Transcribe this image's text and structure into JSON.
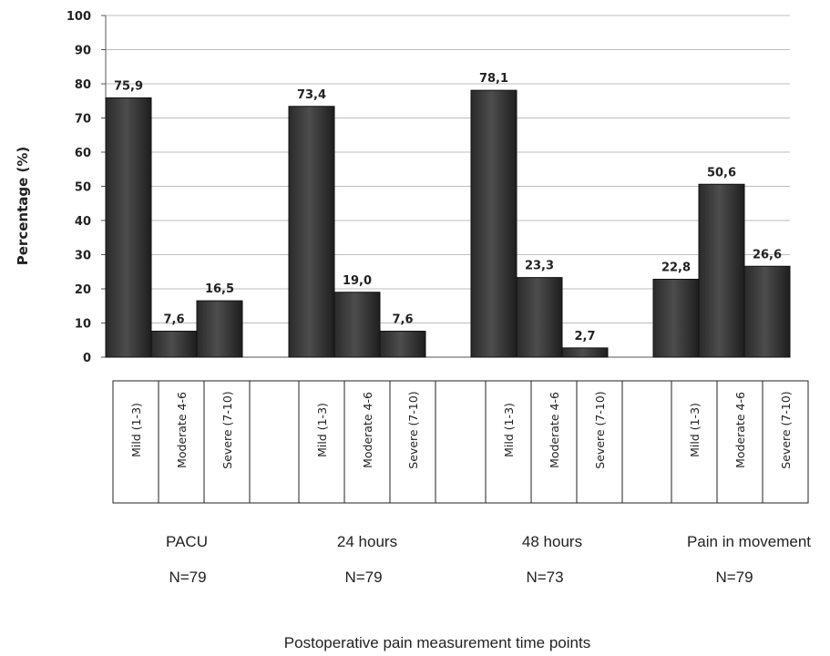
{
  "chart_data": {
    "type": "bar",
    "ylabel": "Percentage (%)",
    "xlabel": "Postoperative pain measurement time points",
    "ylim": [
      0,
      100
    ],
    "yticks": [
      "0",
      "10",
      "20",
      "30",
      "40",
      "50",
      "60",
      "70",
      "80",
      "90",
      "100"
    ],
    "grid": true,
    "bar_color": "#3a3a3a",
    "categories": [
      "Mild (1-3)",
      "Moderate 4-6",
      "Severe (7-10)"
    ],
    "groups": [
      {
        "name": "PACU",
        "n": "N=79",
        "values": [
          75.9,
          7.6,
          16.5
        ],
        "labels": [
          "75,9",
          "7,6",
          "16,5"
        ]
      },
      {
        "name": "24 hours",
        "n": "N=79",
        "values": [
          73.4,
          19.0,
          7.6
        ],
        "labels": [
          "73,4",
          "19,0",
          "7,6"
        ]
      },
      {
        "name": "48 hours",
        "n": "N=73",
        "values": [
          78.1,
          23.3,
          2.7
        ],
        "labels": [
          "78,1",
          "23,3",
          "2,7"
        ]
      },
      {
        "name": "Pain in movement",
        "n": "N=79",
        "values": [
          22.8,
          50.6,
          26.6
        ],
        "labels": [
          "22,8",
          "50,6",
          "26,6"
        ]
      }
    ]
  }
}
